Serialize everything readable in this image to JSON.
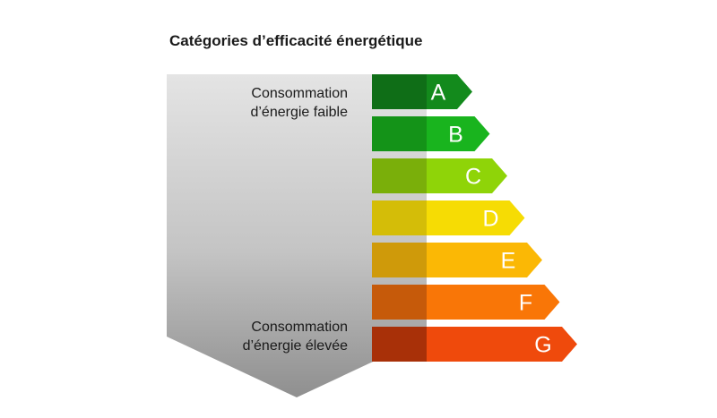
{
  "title": "Catégories d’efficacité énergétique",
  "labels": {
    "low_line1": "Consommation",
    "low_line2": "d’énergie faible",
    "high_line1": "Consommation",
    "high_line2": "d’énergie élevée"
  },
  "classes": [
    {
      "letter": "A",
      "color": "#138a1c",
      "shade": "#0f6e17"
    },
    {
      "letter": "B",
      "color": "#19b41e",
      "shade": "#149318"
    },
    {
      "letter": "C",
      "color": "#8fd408",
      "shade": "#7aaf0a"
    },
    {
      "letter": "D",
      "color": "#f6dc04",
      "shade": "#d4bd08"
    },
    {
      "letter": "E",
      "color": "#fbb805",
      "shade": "#cf9a0a"
    },
    {
      "letter": "F",
      "color": "#f97607",
      "shade": "#c65a0a"
    },
    {
      "letter": "G",
      "color": "#ef4a0c",
      "shade": "#a83008"
    }
  ]
}
